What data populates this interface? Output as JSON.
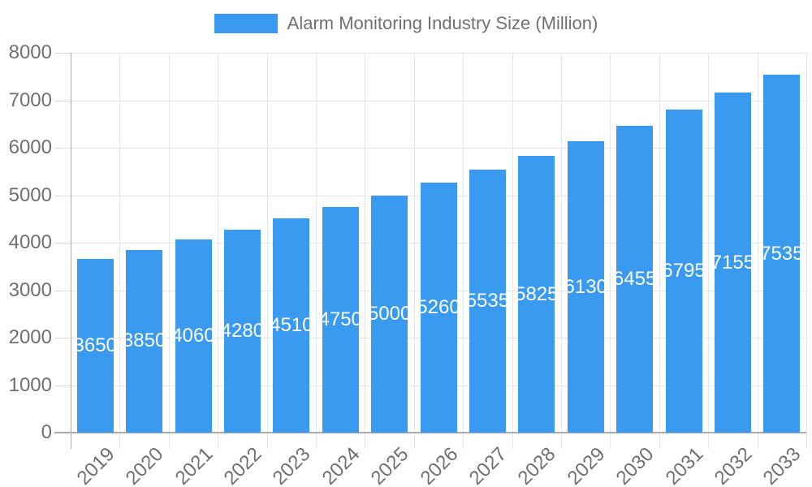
{
  "legend": {
    "label": "Alarm Monitoring Industry Size (Million)"
  },
  "colors": {
    "bar": "#3A9AEF",
    "grid": "#e6e6e6",
    "axis": "#ababab",
    "text": "#707070",
    "value_label": "#ffffff",
    "background": "#ffffff"
  },
  "chart_data": {
    "type": "bar",
    "title": "Alarm Monitoring Industry Size (Million)",
    "categories": [
      "2019",
      "2020",
      "2021",
      "2022",
      "2023",
      "2024",
      "2025",
      "2026",
      "2027",
      "2028",
      "2029",
      "2030",
      "2031",
      "2032",
      "2033"
    ],
    "values": [
      3650,
      3850,
      4060,
      4280,
      4510,
      4750,
      5000,
      5260,
      5535,
      5825,
      6130,
      6455,
      6795,
      7155,
      7535
    ],
    "xlabel": "",
    "ylabel": "",
    "ylim": [
      0,
      8000
    ],
    "ytick_step": 1000,
    "ytick_labels": [
      "0",
      "1000",
      "2000",
      "3000",
      "4000",
      "5000",
      "6000",
      "7000",
      "8000"
    ],
    "grid": true,
    "legend_position": "top-center",
    "value_labels_position": "inside-center",
    "x_label_rotation_deg": -45
  }
}
